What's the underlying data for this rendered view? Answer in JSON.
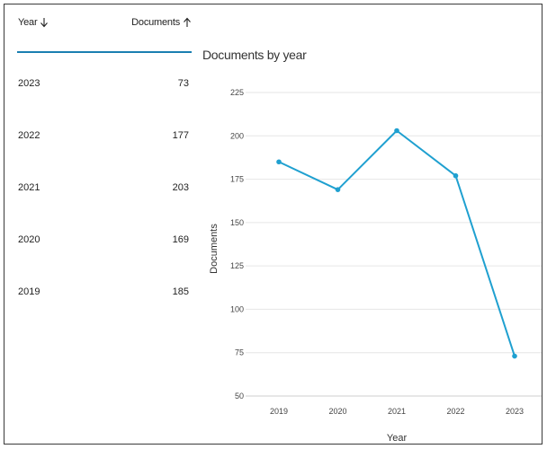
{
  "table": {
    "columns": [
      {
        "label": "Year",
        "sort": "down-arrow-icon"
      },
      {
        "label": "Documents",
        "sort": "up-arrow-icon"
      }
    ],
    "rows": [
      {
        "year": "2023",
        "documents": "73"
      },
      {
        "year": "2022",
        "documents": "177"
      },
      {
        "year": "2021",
        "documents": "203"
      },
      {
        "year": "2020",
        "documents": "169"
      },
      {
        "year": "2019",
        "documents": "185"
      }
    ],
    "accent_color": "#1a7fb1"
  },
  "chart_data": {
    "type": "line",
    "title": "Documents by year",
    "xlabel": "Year",
    "ylabel": "Documents",
    "x": [
      "2019",
      "2020",
      "2021",
      "2022",
      "2023"
    ],
    "series": [
      {
        "values": [
          185,
          169,
          203,
          177,
          73
        ],
        "color": "#1fa0d0"
      }
    ],
    "ylim": [
      50,
      225
    ],
    "yticks": [
      50,
      75,
      100,
      125,
      150,
      175,
      200,
      225
    ],
    "grid": true,
    "legend": "none"
  }
}
